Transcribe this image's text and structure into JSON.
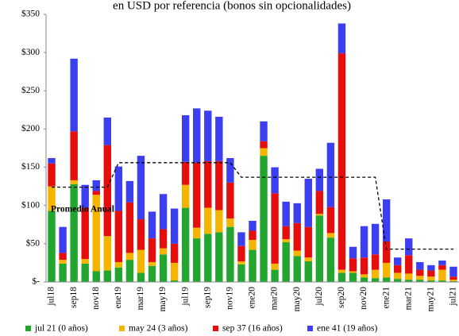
{
  "chart_data": {
    "type": "bar",
    "stacked": true,
    "title": "en USD por referencia (bonos sin opcionalidades)",
    "categories": [
      "jul18",
      null,
      "sep18",
      null,
      "nov18",
      null,
      "ene19",
      null,
      "mar19",
      null,
      "may19",
      null,
      "jul19",
      null,
      "sep19",
      null,
      "nov19",
      null,
      "ene20",
      null,
      "mar20",
      null,
      "may20",
      null,
      "jul20",
      null,
      "sep20",
      null,
      "nov20",
      null,
      "ene21",
      null,
      "mar21",
      null,
      "may21",
      null,
      "jul21"
    ],
    "series": [
      {
        "name": "jul 21 (0 años)",
        "color": "#22a62f",
        "values": [
          93,
          24,
          128,
          24,
          14,
          15,
          19,
          29,
          12,
          21,
          36,
          2,
          97,
          57,
          63,
          65,
          72,
          23,
          42,
          165,
          16,
          52,
          34,
          27,
          87,
          58,
          12,
          12,
          6,
          5,
          6,
          4,
          3,
          3,
          2,
          2,
          1
        ]
      },
      {
        "name": "may 24 (3 años)",
        "color": "#f5b400",
        "values": [
          32,
          5,
          5,
          6,
          100,
          45,
          7,
          9,
          30,
          5,
          8,
          23,
          30,
          14,
          34,
          29,
          11,
          4,
          13,
          10,
          8,
          4,
          7,
          5,
          2,
          6,
          4,
          2,
          4,
          11,
          19,
          8,
          8,
          5,
          5,
          14,
          2
        ]
      },
      {
        "name": "sep 37 (16 años)",
        "color": "#e60d0d",
        "values": [
          30,
          9,
          64,
          67,
          5,
          119,
          67,
          66,
          40,
          31,
          25,
          25,
          30,
          85,
          61,
          64,
          47,
          20,
          12,
          9,
          92,
          17,
          36,
          40,
          30,
          34,
          283,
          17,
          22,
          20,
          28,
          10,
          24,
          8,
          8,
          6,
          4
        ]
      },
      {
        "name": "ene 41 (19 años)",
        "color": "#3b3ff0",
        "values": [
          7,
          34,
          95,
          30,
          14,
          36,
          58,
          28,
          83,
          35,
          46,
          46,
          61,
          71,
          66,
          58,
          32,
          18,
          13,
          26,
          34,
          32,
          26,
          63,
          29,
          84,
          39,
          15,
          41,
          40,
          55,
          10,
          22,
          10,
          7,
          6,
          13
        ]
      }
    ],
    "average": {
      "label": "Promedio Anual",
      "values": [
        124,
        124,
        124,
        124,
        124,
        124,
        156,
        156,
        156,
        156,
        156,
        156,
        156,
        156,
        156,
        156,
        156,
        137,
        137,
        137,
        137,
        137,
        137,
        137,
        137,
        137,
        137,
        137,
        137,
        137,
        43,
        43,
        43,
        43,
        43,
        43,
        43
      ]
    },
    "ylim": [
      0,
      350
    ],
    "yticks": [
      {
        "value": 0,
        "label": "$-"
      },
      {
        "value": 50,
        "label": "$50"
      },
      {
        "value": 100,
        "label": "$100"
      },
      {
        "value": 150,
        "label": "$150"
      },
      {
        "value": 200,
        "label": "$200"
      },
      {
        "value": 250,
        "label": "$250"
      },
      {
        "value": 300,
        "label": "$300"
      },
      {
        "value": 350,
        "label": "$350"
      }
    ],
    "grid": false,
    "legend": "bottom"
  }
}
